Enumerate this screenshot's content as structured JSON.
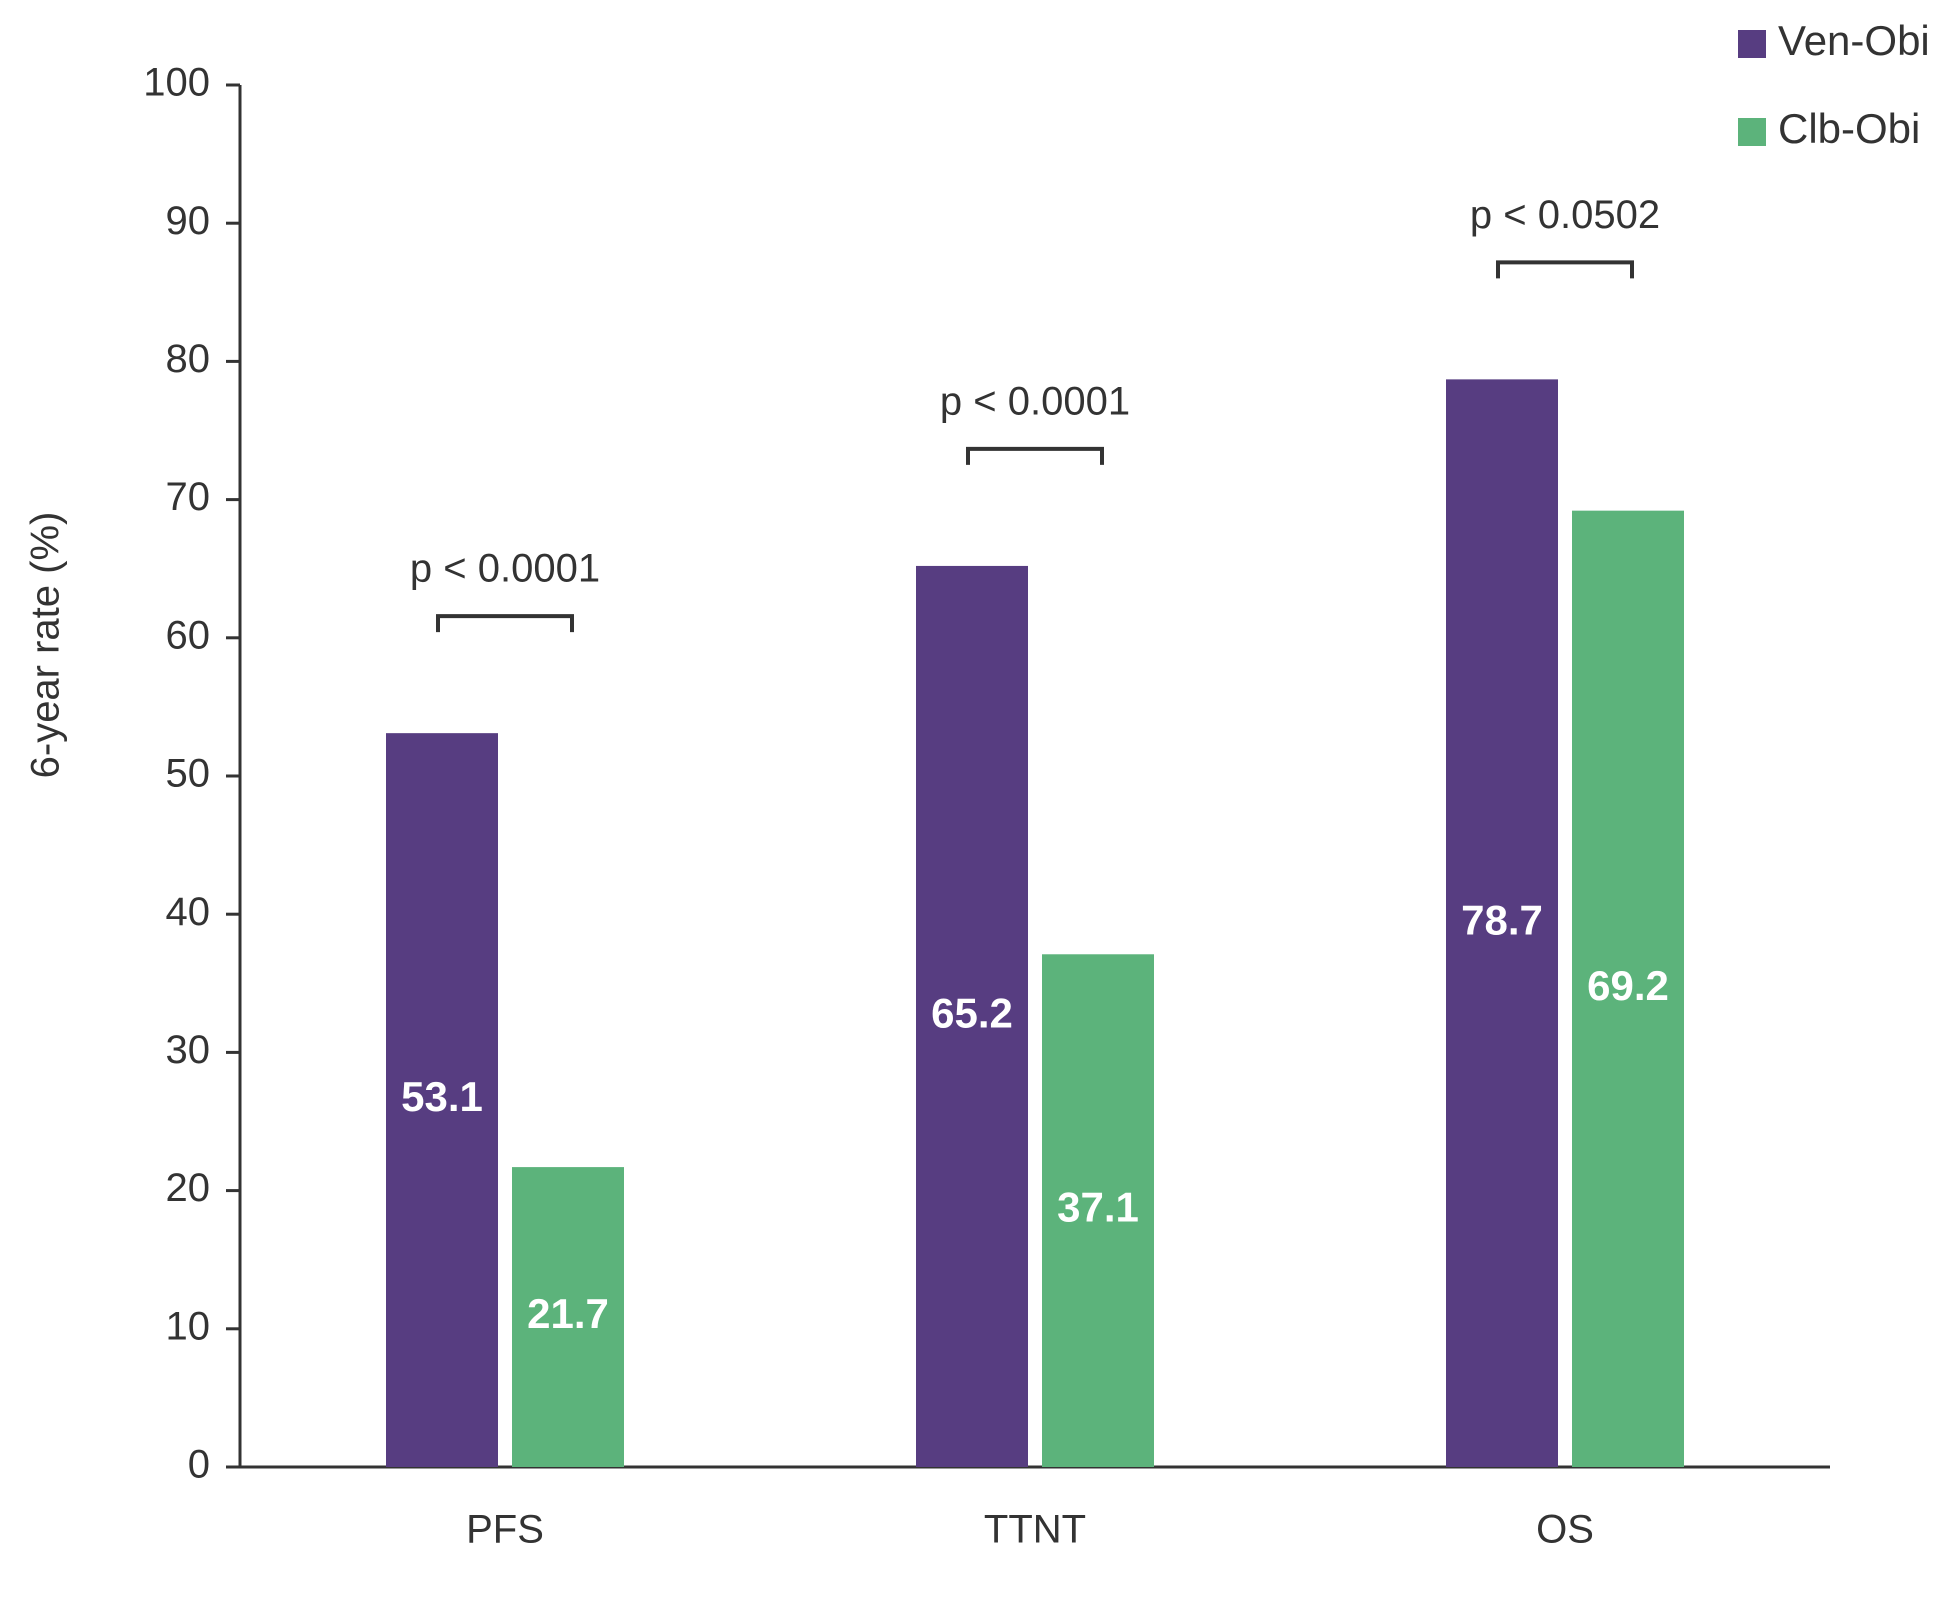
{
  "chart_data": {
    "type": "bar",
    "categories": [
      "PFS",
      "TTNT",
      "OS"
    ],
    "series": [
      {
        "name": "Ven-Obi",
        "values": [
          53.1,
          65.2,
          78.7
        ],
        "color": "#573d81"
      },
      {
        "name": "Clb-Obi",
        "values": [
          21.7,
          37.1,
          69.2
        ],
        "color": "#5cb37b"
      }
    ],
    "data_labels": {
      "Ven-Obi": [
        "53.1",
        "65.2",
        "78.7"
      ],
      "Clb-Obi": [
        "21.7",
        "37.1",
        "69.2"
      ]
    },
    "title": "",
    "xlabel": "",
    "ylabel": "6-year rate (%)",
    "ylim": [
      0,
      100
    ],
    "yticks": [
      0,
      10,
      20,
      30,
      40,
      50,
      60,
      70,
      80,
      90,
      100
    ],
    "grid": false,
    "legend": {
      "position": "top-right",
      "entries": [
        "Ven-Obi",
        "Clb-Obi"
      ]
    },
    "annotations": [
      {
        "category": "PFS",
        "text": "p < 0.0001"
      },
      {
        "category": "TTNT",
        "text": "p < 0.0001"
      },
      {
        "category": "OS",
        "text": "p < 0.0502"
      }
    ]
  }
}
